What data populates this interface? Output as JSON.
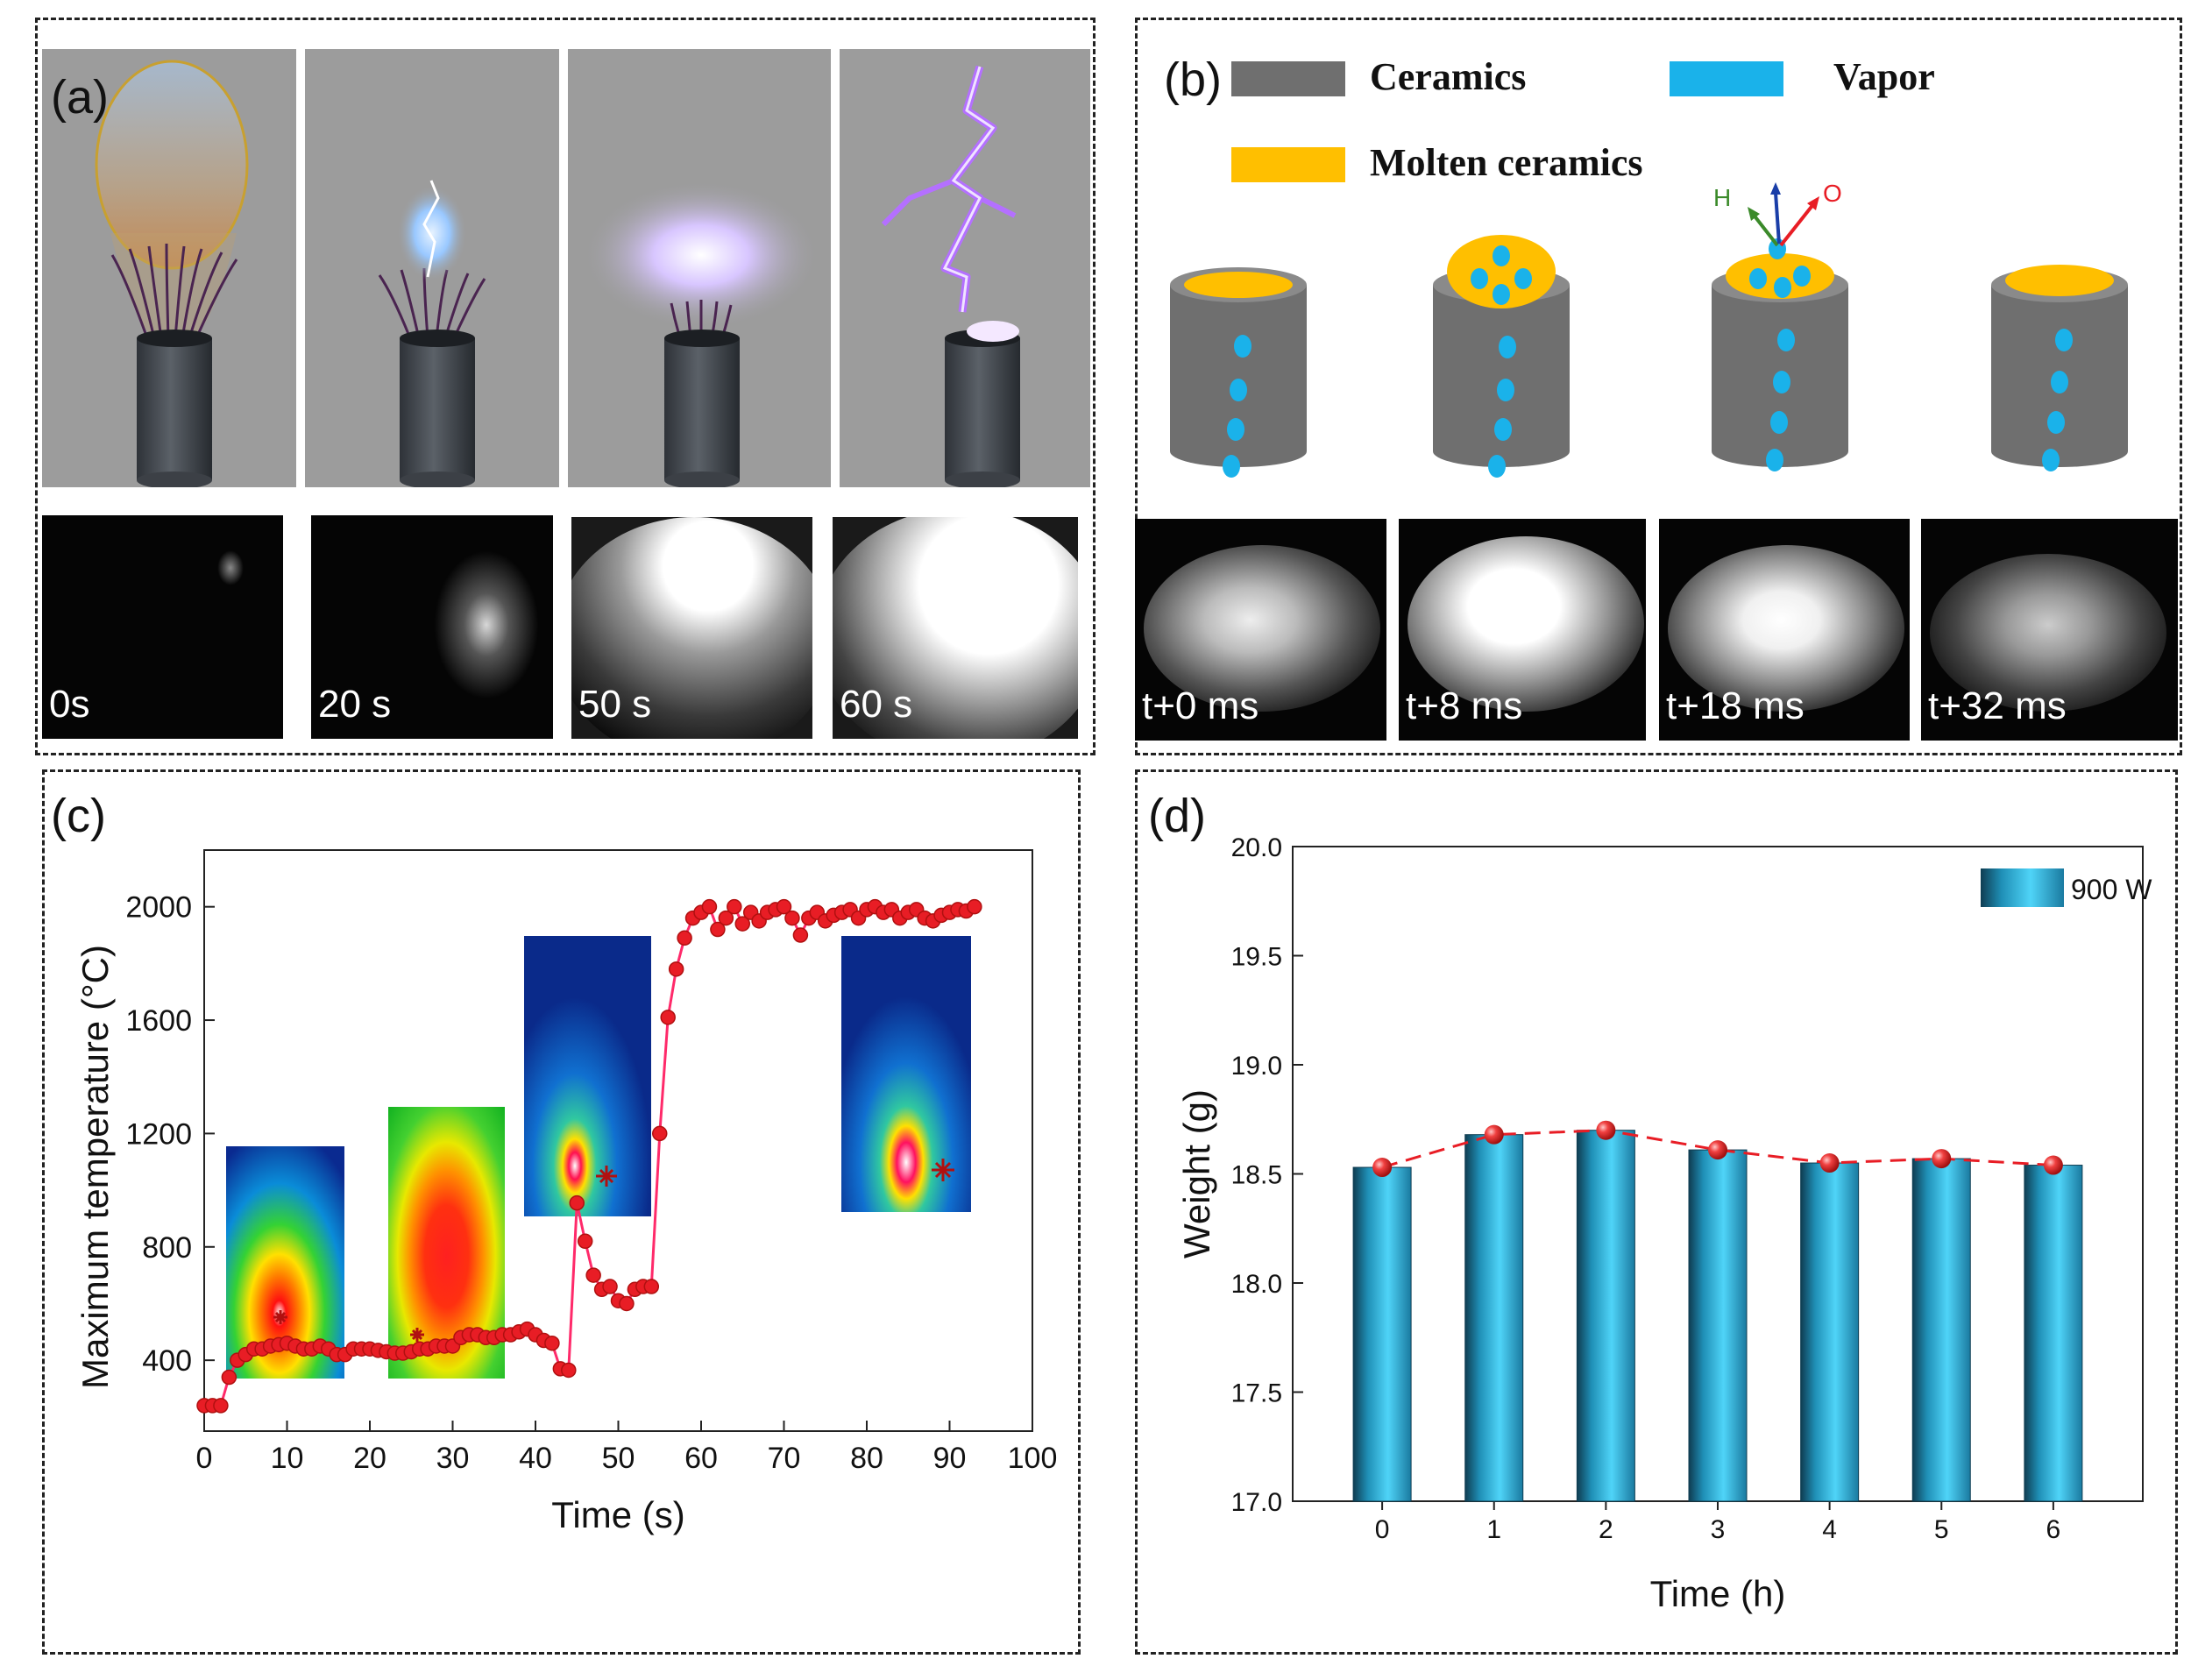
{
  "panel_a": {
    "label": "(a)",
    "photo_labels": [
      "0s",
      "20 s",
      "50 s",
      "60 s"
    ]
  },
  "panel_b": {
    "label": "(b)",
    "legend": {
      "ceramics": "Ceramics",
      "vapor": "Vapor",
      "molten": "Molten ceramics"
    },
    "axis_labels": {
      "h": "H",
      "o": "O"
    },
    "photo_labels": [
      "t+0 ms",
      "t+8 ms",
      "t+18 ms",
      "t+32 ms"
    ],
    "colors": {
      "ceramic": "#6f6f6f",
      "vapor": "#1ab2ea",
      "molten": "#ffbf00"
    }
  },
  "panel_c": {
    "label": "(c)"
  },
  "panel_d": {
    "label": "(d)"
  },
  "chart_data": [
    {
      "type": "line",
      "title": "",
      "xlabel": "Time (s)",
      "ylabel": "Maximum temperature (°C)",
      "xlim": [
        0,
        100
      ],
      "ylim": [
        150,
        2200
      ],
      "xticks": [
        0,
        10,
        20,
        30,
        40,
        50,
        60,
        70,
        80,
        90,
        100
      ],
      "yticks": [
        400,
        800,
        1200,
        1600,
        2000
      ],
      "color": "#e81d25",
      "x": [
        0,
        1,
        2,
        3,
        4,
        5,
        6,
        7,
        8,
        9,
        10,
        11,
        12,
        13,
        14,
        15,
        16,
        17,
        18,
        19,
        20,
        21,
        22,
        23,
        24,
        25,
        26,
        27,
        28,
        29,
        30,
        31,
        32,
        33,
        34,
        35,
        36,
        37,
        38,
        39,
        40,
        41,
        42,
        43,
        44,
        45,
        46,
        47,
        48,
        49,
        50,
        51,
        52,
        53,
        54,
        55,
        56,
        57,
        58,
        59,
        60,
        61,
        62,
        63,
        64,
        65,
        66,
        67,
        68,
        69,
        70,
        71,
        72,
        73,
        74,
        75,
        76,
        77,
        78,
        79,
        80,
        81,
        82,
        83,
        84,
        85,
        86,
        87,
        88,
        89,
        90,
        91,
        92,
        93
      ],
      "y": [
        240,
        240,
        240,
        340,
        400,
        420,
        440,
        440,
        450,
        455,
        460,
        450,
        440,
        440,
        450,
        440,
        420,
        420,
        440,
        440,
        440,
        435,
        430,
        425,
        425,
        430,
        440,
        440,
        450,
        450,
        450,
        480,
        490,
        490,
        480,
        480,
        490,
        490,
        500,
        510,
        490,
        470,
        460,
        370,
        365,
        955,
        820,
        700,
        650,
        660,
        610,
        600,
        650,
        660,
        660,
        1200,
        1610,
        1780,
        1890,
        1960,
        1980,
        2000,
        1920,
        1960,
        2000,
        1940,
        1980,
        1950,
        1980,
        1990,
        2000,
        1960,
        1900,
        1960,
        1980,
        1950,
        1970,
        1980,
        1990,
        1960,
        1990,
        2000,
        1980,
        1990,
        1960,
        1980,
        1990,
        1960,
        1950,
        1970,
        1980,
        1990,
        1985,
        2000
      ]
    },
    {
      "type": "bar",
      "title": "",
      "xlabel": "Time (h)",
      "ylabel": "Weight (g)",
      "categories": [
        "0",
        "1",
        "2",
        "3",
        "4",
        "5",
        "6"
      ],
      "ylim": [
        17.0,
        20.0
      ],
      "yticks": [
        "17.0",
        "17.5",
        "18.0",
        "18.5",
        "19.0",
        "19.5",
        "20.0"
      ],
      "series": [
        {
          "name": "900 W",
          "values": [
            18.53,
            18.68,
            18.7,
            18.61,
            18.55,
            18.57,
            18.54
          ],
          "color": "#27b4dc"
        }
      ],
      "line_color": "#e81d25"
    }
  ]
}
